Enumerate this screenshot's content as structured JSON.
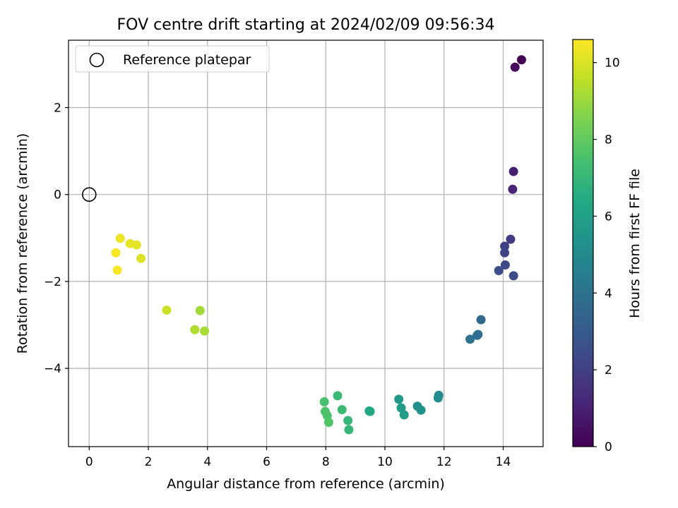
{
  "chart_data": {
    "type": "scatter",
    "title": "FOV centre drift starting at 2024/02/09 09:56:34",
    "xlabel": "Angular distance from reference (arcmin)",
    "ylabel": "Rotation from reference (arcmin)",
    "xlim": [
      -0.7,
      15.35
    ],
    "ylim": [
      -5.8,
      3.55
    ],
    "xticks": [
      0,
      2,
      4,
      6,
      8,
      10,
      12,
      14
    ],
    "yticks": [
      -4,
      -2,
      0,
      2
    ],
    "grid": true,
    "legend": {
      "location": "upper-left",
      "entries": [
        "Reference platepar"
      ]
    },
    "reference_point": {
      "x": 0,
      "y": 0,
      "label": "Reference platepar"
    },
    "colorbar": {
      "label": "Hours from first FF file",
      "colormap": "viridis",
      "range": [
        0,
        10.6
      ],
      "ticks": [
        0,
        2,
        4,
        6,
        8,
        10
      ]
    },
    "points": [
      {
        "x": 14.62,
        "y": 3.1,
        "hours": 0.0
      },
      {
        "x": 14.4,
        "y": 2.93,
        "hours": 0.2
      },
      {
        "x": 14.35,
        "y": 0.53,
        "hours": 0.9
      },
      {
        "x": 14.32,
        "y": 0.12,
        "hours": 1.1
      },
      {
        "x": 14.25,
        "y": -1.03,
        "hours": 1.9
      },
      {
        "x": 14.05,
        "y": -1.19,
        "hours": 2.0
      },
      {
        "x": 14.05,
        "y": -1.34,
        "hours": 2.1
      },
      {
        "x": 14.07,
        "y": -1.62,
        "hours": 2.3
      },
      {
        "x": 13.85,
        "y": -1.75,
        "hours": 2.5
      },
      {
        "x": 14.35,
        "y": -1.87,
        "hours": 2.4
      },
      {
        "x": 13.25,
        "y": -2.88,
        "hours": 3.6
      },
      {
        "x": 13.12,
        "y": -3.24,
        "hours": 3.8
      },
      {
        "x": 13.15,
        "y": -3.22,
        "hours": 3.8
      },
      {
        "x": 12.88,
        "y": -3.33,
        "hours": 4.0
      },
      {
        "x": 11.82,
        "y": -4.62,
        "hours": 5.0
      },
      {
        "x": 11.8,
        "y": -4.68,
        "hours": 5.1
      },
      {
        "x": 11.1,
        "y": -4.87,
        "hours": 5.2
      },
      {
        "x": 11.22,
        "y": -4.96,
        "hours": 5.3
      },
      {
        "x": 10.47,
        "y": -4.71,
        "hours": 5.6
      },
      {
        "x": 10.55,
        "y": -4.91,
        "hours": 5.7
      },
      {
        "x": 10.65,
        "y": -5.07,
        "hours": 5.8
      },
      {
        "x": 9.47,
        "y": -4.98,
        "hours": 6.2
      },
      {
        "x": 9.5,
        "y": -4.99,
        "hours": 6.3
      },
      {
        "x": 8.4,
        "y": -4.63,
        "hours": 7.1
      },
      {
        "x": 8.55,
        "y": -4.95,
        "hours": 7.2
      },
      {
        "x": 8.75,
        "y": -5.2,
        "hours": 7.0
      },
      {
        "x": 8.78,
        "y": -5.41,
        "hours": 7.0
      },
      {
        "x": 7.95,
        "y": -4.77,
        "hours": 7.5
      },
      {
        "x": 7.98,
        "y": -4.99,
        "hours": 7.6
      },
      {
        "x": 8.05,
        "y": -5.09,
        "hours": 7.6
      },
      {
        "x": 8.1,
        "y": -5.24,
        "hours": 7.7
      },
      {
        "x": 3.75,
        "y": -2.67,
        "hours": 9.1
      },
      {
        "x": 3.9,
        "y": -3.14,
        "hours": 9.2
      },
      {
        "x": 3.57,
        "y": -3.11,
        "hours": 9.3
      },
      {
        "x": 2.62,
        "y": -2.66,
        "hours": 9.8
      },
      {
        "x": 1.05,
        "y": -1.01,
        "hours": 10.3
      },
      {
        "x": 1.38,
        "y": -1.13,
        "hours": 10.2
      },
      {
        "x": 1.6,
        "y": -1.16,
        "hours": 10.2
      },
      {
        "x": 1.75,
        "y": -1.47,
        "hours": 10.1
      },
      {
        "x": 0.9,
        "y": -1.34,
        "hours": 10.5
      },
      {
        "x": 0.95,
        "y": -1.74,
        "hours": 10.5
      }
    ]
  }
}
